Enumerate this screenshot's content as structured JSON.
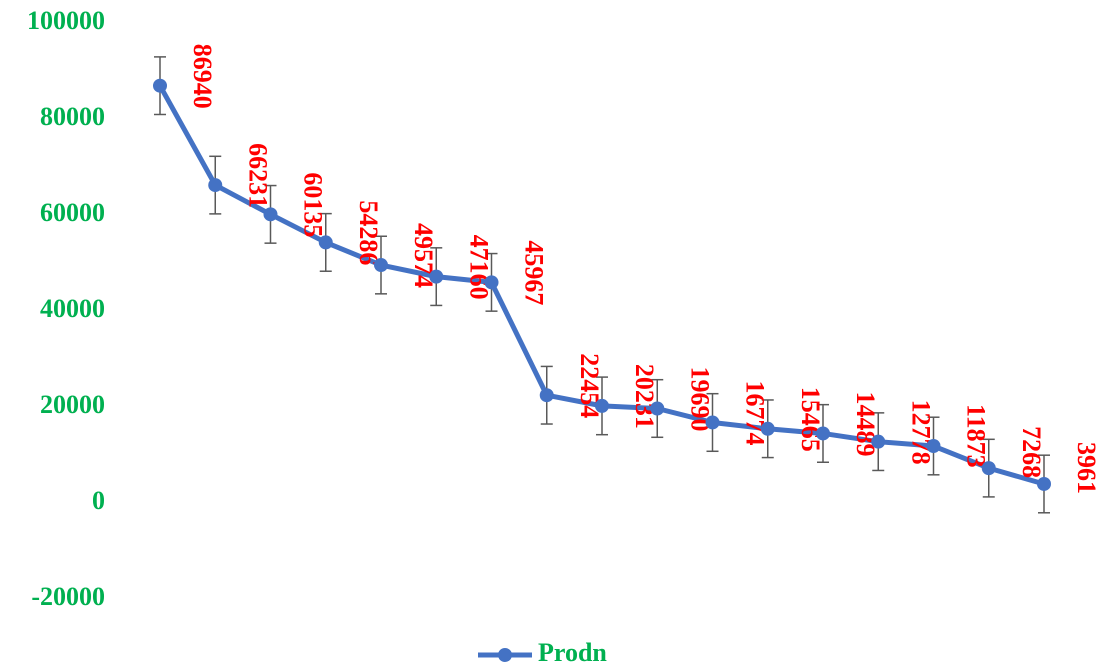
{
  "chart_data": {
    "type": "line",
    "categories": [
      null,
      null,
      null,
      null,
      null,
      null,
      null,
      null,
      null,
      null,
      null,
      null,
      null,
      null,
      null,
      null,
      null
    ],
    "series": [
      {
        "name": "Prodn",
        "color": "#4472c4",
        "values": [
          86940,
          66231,
          60135,
          54286,
          49574,
          47160,
          45967,
          22454,
          20231,
          19690,
          16774,
          15465,
          14489,
          12778,
          11873,
          7268,
          3961
        ],
        "errors": [
          6000,
          6000,
          6000,
          6000,
          6000,
          6000,
          6000,
          6000,
          6000,
          6000,
          6000,
          6000,
          6000,
          6000,
          6000,
          6000,
          6000
        ]
      }
    ],
    "ylim": [
      -20000,
      100000
    ],
    "yticks": [
      -20000,
      0,
      20000,
      40000,
      60000,
      80000,
      100000
    ],
    "grid": false,
    "legend": "bottom",
    "tick_color": "#00b050",
    "label_color": "#ff0000",
    "error_color": "#595959"
  }
}
